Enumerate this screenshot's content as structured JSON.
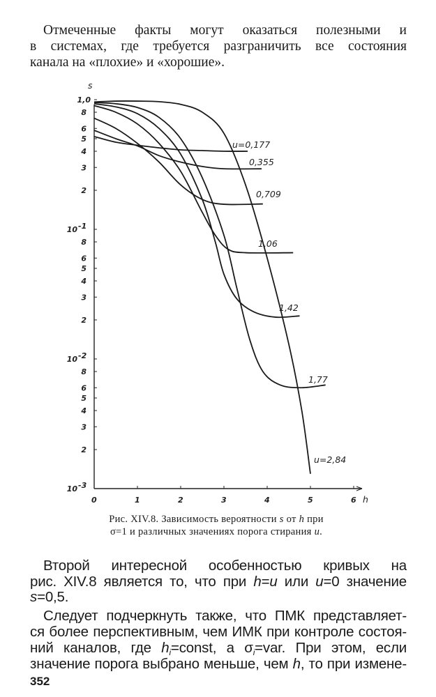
{
  "top_text": [
    "Отмеченные факты могут оказаться полезными и",
    "в системах, где требуется разграничить все состояния",
    "канала на «плохие» и «хорошие»."
  ],
  "caption": {
    "line1_a": "Рис. XIV.8. Зависимость вероятности ",
    "line1_s": "s",
    "line1_b": " от ",
    "line1_h": "h",
    "line1_c": " при",
    "line2_a": "σ=1 и различных значениях порога стирания ",
    "line2_u": "u",
    "line2_b": "."
  },
  "body": {
    "p1_l1": "Второй интересной особенностью кривых на",
    "p1_l2_a": "рис. XIV.8 является то, что при ",
    "p1_l2_h": "h",
    "p1_l2_b": "=",
    "p1_l2_u": "u",
    "p1_l2_c": " или ",
    "p1_l2_u2": "u",
    "p1_l2_d": "=0 значение",
    "p1_l3_s": "s",
    "p1_l3_b": "=0,5.",
    "p2_l1": "Следует подчеркнуть также, что ПМК представляет-",
    "p2_l2": "ся более перспективным, чем ИМК при контроле состоя-",
    "p2_l3_a": "ний каналов, где ",
    "p2_l3_h": "h",
    "p2_l3_i": "i",
    "p2_l3_b": "=const, а ",
    "p2_l3_sig": "σ",
    "p2_l3_i2": "i",
    "p2_l3_c": "=var. При этом, если",
    "p2_l4_a": "значение порога выбрано меньше, чем ",
    "p2_l4_h": "h",
    "p2_l4_b": ", то при измене-"
  },
  "page_number": "352",
  "chart_data": {
    "type": "line",
    "xlabel": "h",
    "ylabel": "s",
    "xlim": [
      0,
      6
    ],
    "ylim": [
      0.001,
      1.0
    ],
    "yscale": "log",
    "grid": false,
    "x_ticks": [
      "0",
      "1",
      "2",
      "3",
      "4",
      "5",
      "6"
    ],
    "y_major_ticks": [
      {
        "value": 1.0,
        "label": "1,0"
      },
      {
        "value": 0.1,
        "label": "10",
        "exp": "-1"
      },
      {
        "value": 0.01,
        "label": "10",
        "exp": "-2"
      },
      {
        "value": 0.001,
        "label": "10",
        "exp": "-3"
      }
    ],
    "y_minor_labels": [
      "8",
      "6",
      "5",
      "4",
      "3",
      "2"
    ],
    "series": [
      {
        "name": "u=0,177",
        "points": [
          [
            0,
            0.52
          ],
          [
            0.5,
            0.47
          ],
          [
            1,
            0.445
          ],
          [
            1.5,
            0.425
          ],
          [
            2,
            0.41
          ],
          [
            2.5,
            0.405
          ],
          [
            3,
            0.4
          ],
          [
            3.55,
            0.4
          ]
        ]
      },
      {
        "name": "0,355",
        "points": [
          [
            0,
            0.58
          ],
          [
            0.5,
            0.5
          ],
          [
            1,
            0.44
          ],
          [
            1.5,
            0.37
          ],
          [
            2,
            0.33
          ],
          [
            2.5,
            0.305
          ],
          [
            3,
            0.293
          ],
          [
            3.87,
            0.293
          ]
        ]
      },
      {
        "name": "0,709",
        "points": [
          [
            0,
            0.72
          ],
          [
            0.5,
            0.6
          ],
          [
            1,
            0.46
          ],
          [
            1.5,
            0.33
          ],
          [
            2,
            0.22
          ],
          [
            2.5,
            0.17
          ],
          [
            3,
            0.156
          ],
          [
            3.9,
            0.157
          ]
        ]
      },
      {
        "name": "1,06",
        "points": [
          [
            0,
            0.9
          ],
          [
            0.5,
            0.8
          ],
          [
            1,
            0.65
          ],
          [
            1.5,
            0.46
          ],
          [
            2,
            0.28
          ],
          [
            2.5,
            0.135
          ],
          [
            2.8,
            0.09
          ],
          [
            3.1,
            0.07
          ],
          [
            3.5,
            0.066
          ],
          [
            4.6,
            0.066
          ]
        ]
      },
      {
        "name": "1,42",
        "points": [
          [
            0,
            0.93
          ],
          [
            0.5,
            0.88
          ],
          [
            1,
            0.78
          ],
          [
            1.5,
            0.6
          ],
          [
            2,
            0.38
          ],
          [
            2.5,
            0.17
          ],
          [
            2.8,
            0.08
          ],
          [
            3,
            0.045
          ],
          [
            3.3,
            0.029
          ],
          [
            3.7,
            0.023
          ],
          [
            4.2,
            0.021
          ],
          [
            4.75,
            0.0215
          ]
        ]
      },
      {
        "name": "1,77",
        "points": [
          [
            0,
            0.95
          ],
          [
            0.5,
            0.93
          ],
          [
            1,
            0.87
          ],
          [
            1.5,
            0.73
          ],
          [
            2,
            0.5
          ],
          [
            2.5,
            0.25
          ],
          [
            3,
            0.09
          ],
          [
            3.3,
            0.035
          ],
          [
            3.6,
            0.014
          ],
          [
            3.9,
            0.008
          ],
          [
            4.3,
            0.0063
          ],
          [
            4.8,
            0.006
          ],
          [
            5.35,
            0.0063
          ]
        ]
      },
      {
        "name": "u=2,84",
        "points": [
          [
            0,
            0.96
          ],
          [
            0.5,
            0.975
          ],
          [
            1,
            0.975
          ],
          [
            1.5,
            0.965
          ],
          [
            2,
            0.92
          ],
          [
            2.5,
            0.8
          ],
          [
            3,
            0.55
          ],
          [
            3.5,
            0.22
          ],
          [
            4,
            0.06
          ],
          [
            4.5,
            0.013
          ],
          [
            4.8,
            0.004
          ],
          [
            5,
            0.0013
          ]
        ]
      }
    ]
  }
}
